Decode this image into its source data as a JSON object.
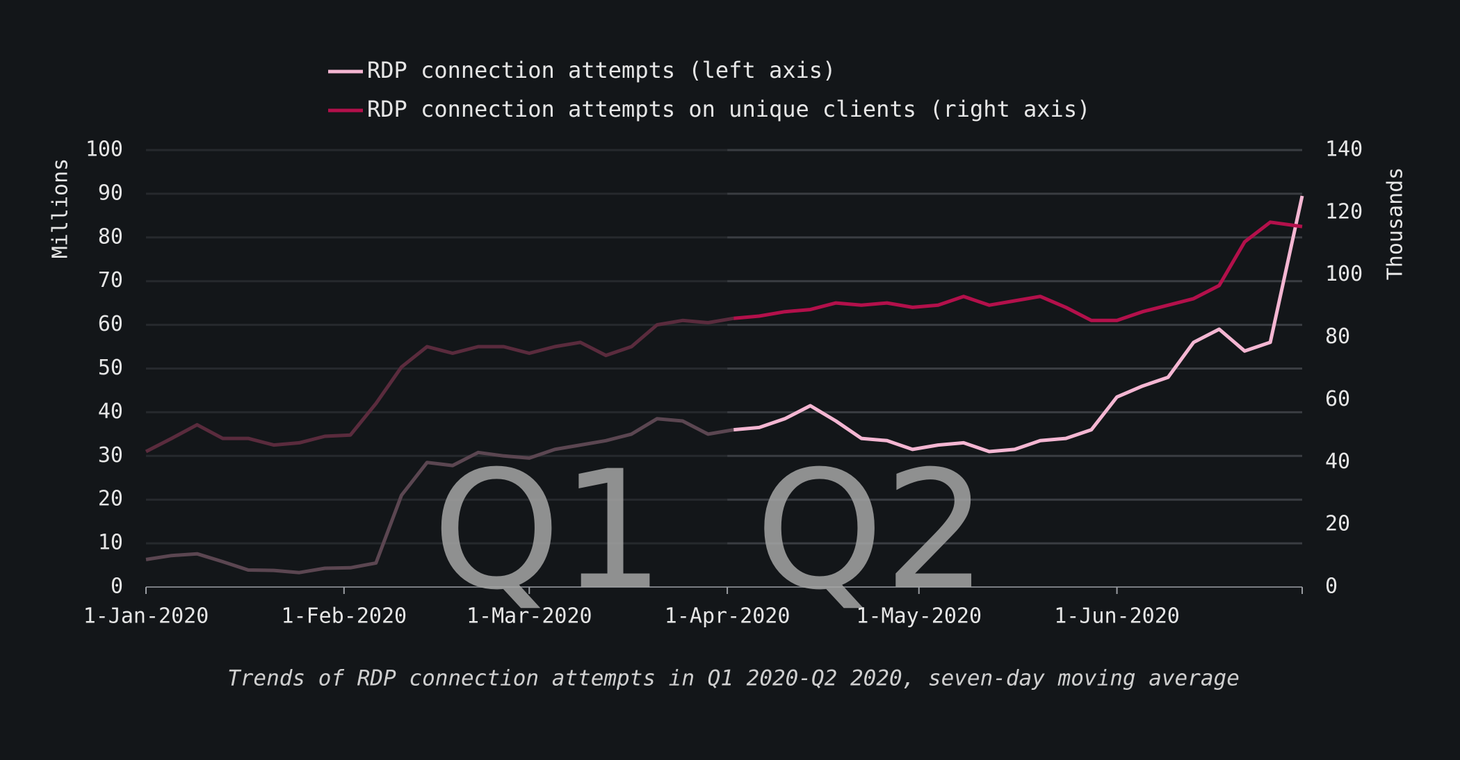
{
  "chart_data": {
    "type": "line",
    "y_label": "Millions",
    "y2_label": "Thousands",
    "caption": "Trends of RDP connection attempts in Q1 2020-Q2 2020, seven-day moving average",
    "annotations": [
      "Q1",
      "Q2"
    ],
    "highlight_from": "2020-04-01",
    "x": [
      "2020-01-01",
      "2020-01-05",
      "2020-01-09",
      "2020-01-13",
      "2020-01-17",
      "2020-01-21",
      "2020-01-25",
      "2020-01-29",
      "2020-02-02",
      "2020-02-06",
      "2020-02-10",
      "2020-02-14",
      "2020-02-18",
      "2020-02-22",
      "2020-02-26",
      "2020-03-01",
      "2020-03-05",
      "2020-03-09",
      "2020-03-13",
      "2020-03-17",
      "2020-03-21",
      "2020-03-25",
      "2020-03-29",
      "2020-04-02",
      "2020-04-06",
      "2020-04-10",
      "2020-04-14",
      "2020-04-18",
      "2020-04-22",
      "2020-04-26",
      "2020-04-30",
      "2020-05-04",
      "2020-05-08",
      "2020-05-12",
      "2020-05-16",
      "2020-05-20",
      "2020-05-24",
      "2020-05-28",
      "2020-06-01",
      "2020-06-05",
      "2020-06-09",
      "2020-06-13",
      "2020-06-17",
      "2020-06-21",
      "2020-06-25",
      "2020-06-30"
    ],
    "series": [
      {
        "name": "RDP connection attempts (left axis)",
        "color": "#f4b6d2",
        "dim_color": "#5b4651",
        "values": [
          6.3,
          7.2,
          7.6,
          5.8,
          3.9,
          3.8,
          3.3,
          4.3,
          4.4,
          5.5,
          21,
          28.5,
          27.8,
          30.8,
          30,
          29.5,
          31.5,
          32.5,
          33.5,
          35,
          38.5,
          38,
          35,
          36,
          36.5,
          38.5,
          41.5,
          38,
          34,
          33.5,
          31.5,
          32.5,
          33,
          31,
          31.5,
          33.5,
          34,
          36,
          43.5,
          46,
          48,
          56,
          59,
          54,
          56,
          89.5
        ]
      },
      {
        "name": "RDP connection attempts on unique clients (right axis)",
        "color": "#b3104b",
        "dim_color": "#5a2b3d",
        "axis": "y2",
        "values": [
          43.4,
          47.6,
          52,
          47.6,
          47.6,
          45.5,
          46.2,
          48.3,
          48.7,
          58.8,
          70.5,
          77,
          74.9,
          77,
          77,
          74.9,
          77,
          78.4,
          74.2,
          77,
          84,
          85.4,
          84.7,
          86.1,
          86.8,
          88.2,
          88.9,
          91,
          90.3,
          91,
          89.6,
          90.3,
          93.1,
          90.3,
          91.7,
          93.1,
          89.6,
          85.4,
          85.4,
          88.2,
          90.3,
          92.4,
          96.6,
          110.6,
          116.9,
          115.5
        ]
      }
    ],
    "xlim": [
      "2020-01-01",
      "2020-06-30"
    ],
    "xticks": [
      {
        "value": "2020-01-01",
        "label": "1-Jan-2020"
      },
      {
        "value": "2020-02-01",
        "label": "1-Feb-2020"
      },
      {
        "value": "2020-03-01",
        "label": "1-Mar-2020"
      },
      {
        "value": "2020-04-01",
        "label": "1-Apr-2020"
      },
      {
        "value": "2020-05-01",
        "label": "1-May-2020"
      },
      {
        "value": "2020-06-01",
        "label": "1-Jun-2020"
      }
    ],
    "ylim": [
      0,
      100
    ],
    "yticks": [
      0,
      10,
      20,
      30,
      40,
      50,
      60,
      70,
      80,
      90,
      100
    ],
    "y2lim": [
      0,
      140
    ],
    "y2ticks": [
      0,
      20,
      40,
      60,
      80,
      100,
      120,
      140
    ],
    "grid": true
  }
}
